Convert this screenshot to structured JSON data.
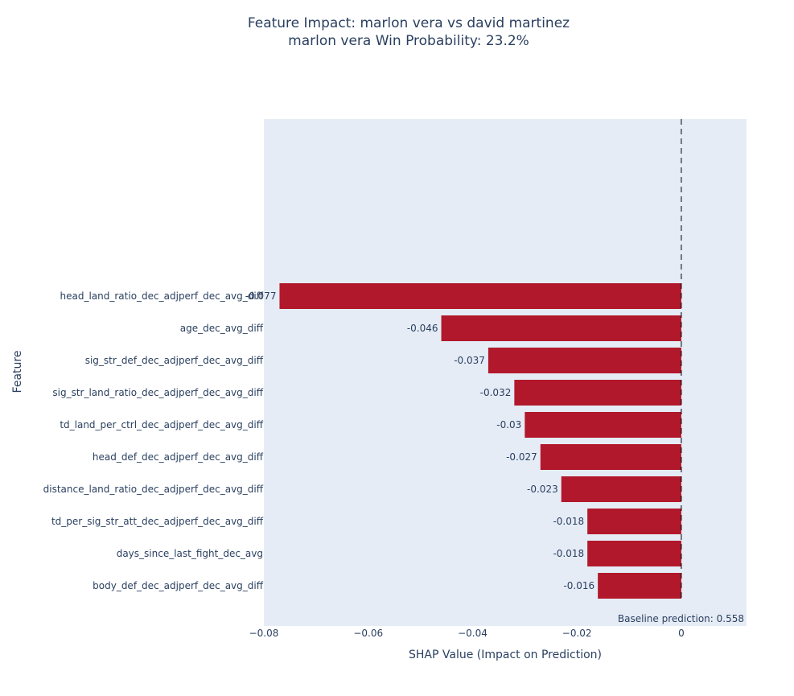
{
  "chart_data": {
    "type": "bar",
    "orientation": "horizontal",
    "title": "Feature Impact: marlon vera vs david martinez",
    "subtitle": "marlon vera Win Probability: 23.2%",
    "xlabel": "SHAP Value (Impact on Prediction)",
    "ylabel": "Feature",
    "xlim": [
      -0.08,
      0.0125
    ],
    "x_ticks": [
      -0.08,
      -0.06,
      -0.04,
      -0.02,
      0
    ],
    "x_tick_labels": [
      "−0.08",
      "−0.06",
      "−0.04",
      "−0.02",
      "0"
    ],
    "categories": [
      "head_land_ratio_dec_adjperf_dec_avg_diff",
      "age_dec_avg_diff",
      "sig_str_def_dec_adjperf_dec_avg_diff",
      "sig_str_land_ratio_dec_adjperf_dec_avg_diff",
      "td_land_per_ctrl_dec_adjperf_dec_avg_diff",
      "head_def_dec_adjperf_dec_avg_diff",
      "distance_land_ratio_dec_adjperf_dec_avg_diff",
      "td_per_sig_str_att_dec_adjperf_dec_avg_diff",
      "days_since_last_fight_dec_avg",
      "body_def_dec_adjperf_dec_avg_diff"
    ],
    "values": [
      -0.077,
      -0.046,
      -0.037,
      -0.032,
      -0.03,
      -0.027,
      -0.023,
      -0.018,
      -0.018,
      -0.016
    ],
    "data_labels": [
      "-0.077",
      "-0.046",
      "-0.037",
      "-0.032",
      "-0.03",
      "-0.027",
      "-0.023",
      "-0.018",
      "-0.018",
      "-0.016"
    ],
    "bar_color": "#b2182b",
    "plot_background": "#e5ecf6",
    "text_color": "#2a3f5f",
    "reference_line": {
      "x": 0,
      "style": "dashed"
    },
    "annotation": "Baseline prediction: 0.558",
    "grid": false
  }
}
